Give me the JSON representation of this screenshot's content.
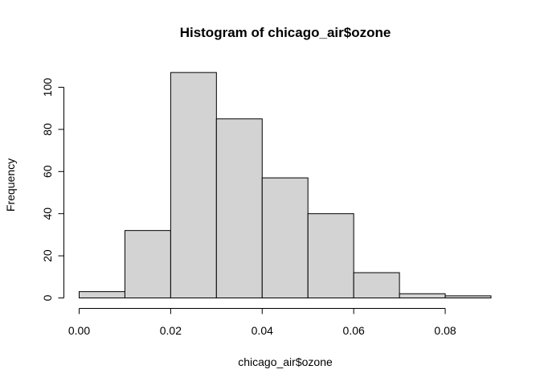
{
  "chart_data": {
    "type": "bar",
    "title": "Histogram of chicago_air$ozone",
    "xlabel": "chicago_air$ozone",
    "ylabel": "Frequency",
    "bins": [
      {
        "from": 0.0,
        "to": 0.01,
        "count": 3
      },
      {
        "from": 0.01,
        "to": 0.02,
        "count": 32
      },
      {
        "from": 0.02,
        "to": 0.03,
        "count": 107
      },
      {
        "from": 0.03,
        "to": 0.04,
        "count": 85
      },
      {
        "from": 0.04,
        "to": 0.05,
        "count": 57
      },
      {
        "from": 0.05,
        "to": 0.06,
        "count": 40
      },
      {
        "from": 0.06,
        "to": 0.07,
        "count": 12
      },
      {
        "from": 0.07,
        "to": 0.08,
        "count": 2
      },
      {
        "from": 0.08,
        "to": 0.09,
        "count": 1
      }
    ],
    "xlim": [
      0.0,
      0.09
    ],
    "ylim": [
      0,
      107
    ],
    "x_ticks": [
      0.0,
      0.02,
      0.04,
      0.06,
      0.08
    ],
    "x_tick_labels": [
      "0.00",
      "0.02",
      "0.04",
      "0.06",
      "0.08"
    ],
    "y_ticks": [
      0,
      20,
      40,
      60,
      80,
      100
    ],
    "y_tick_labels": [
      "0",
      "20",
      "40",
      "60",
      "80",
      "100"
    ],
    "bar_color": "#d3d3d3",
    "edge_color": "#000000",
    "grid": false,
    "legend": "none"
  }
}
